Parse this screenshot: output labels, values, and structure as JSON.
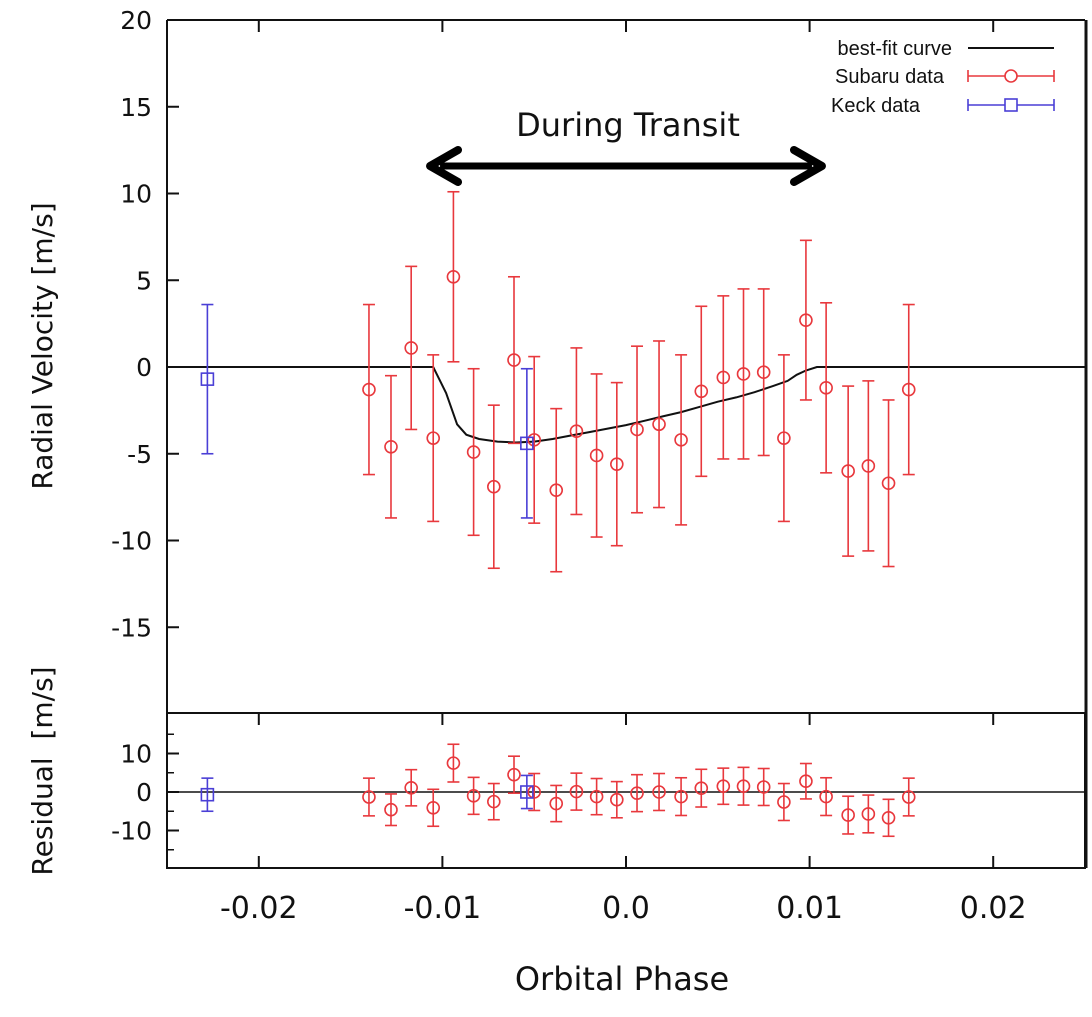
{
  "chart_data": [
    {
      "type": "scatter",
      "panel": "main",
      "ylabel": "Radial Velocity [m/s]",
      "xlim": [
        -0.025,
        0.025
      ],
      "ylim": [
        -20,
        20
      ],
      "x_ticks": [
        "-0.02",
        "-0.01",
        "0.0",
        "0.01",
        "0.02"
      ],
      "y_ticks": [
        "20",
        "15",
        "10",
        "5",
        "0",
        "-5",
        "-10",
        "-15"
      ],
      "xlabel": "Orbital Phase",
      "annotation": "During Transit",
      "transit_range": [
        -0.011,
        0.011
      ],
      "legend": {
        "placement": "top-right",
        "entries": [
          "best-fit curve",
          "Subaru data",
          "Keck data"
        ]
      },
      "series": [
        {
          "name": "best-fit curve",
          "kind": "line",
          "color": "#111111",
          "x": [
            -0.025,
            -0.0105,
            -0.0098,
            -0.0092,
            -0.0087,
            -0.008,
            -0.007,
            -0.006,
            -0.005,
            -0.004,
            -0.003,
            -0.002,
            -0.001,
            0.0,
            0.001,
            0.002,
            0.003,
            0.004,
            0.005,
            0.006,
            0.007,
            0.008,
            0.0088,
            0.0093,
            0.0098,
            0.0104,
            0.025
          ],
          "y": [
            0,
            0,
            -1.5,
            -3.3,
            -3.9,
            -4.15,
            -4.3,
            -4.35,
            -4.3,
            -4.15,
            -3.95,
            -3.75,
            -3.55,
            -3.35,
            -3.1,
            -2.85,
            -2.6,
            -2.3,
            -2.0,
            -1.75,
            -1.45,
            -1.1,
            -0.8,
            -0.45,
            -0.2,
            0,
            0
          ]
        },
        {
          "name": "Subaru data",
          "kind": "errorbar",
          "marker": "circle",
          "color": "#e8383d",
          "x": [
            -0.014,
            -0.0128,
            -0.0117,
            -0.0105,
            -0.0094,
            -0.0083,
            -0.0072,
            -0.0061,
            -0.005,
            -0.0038,
            -0.0027,
            -0.0016,
            -0.0005,
            0.0006,
            0.0018,
            0.003,
            0.0041,
            0.0053,
            0.0064,
            0.0075,
            0.0086,
            0.0098,
            0.0109,
            0.0121,
            0.0132,
            0.0143,
            0.0154
          ],
          "y": [
            -1.3,
            -4.6,
            1.1,
            -4.1,
            5.2,
            -4.9,
            -6.9,
            0.4,
            -4.2,
            -7.1,
            -3.7,
            -5.1,
            -5.6,
            -3.6,
            -3.3,
            -4.2,
            -1.4,
            -0.6,
            -0.4,
            -0.3,
            -4.1,
            2.7,
            -1.2,
            -6.0,
            -5.7,
            -6.7,
            -1.3
          ],
          "yerr": [
            4.9,
            4.1,
            4.7,
            4.8,
            4.9,
            4.8,
            4.7,
            4.8,
            4.8,
            4.7,
            4.8,
            4.7,
            4.7,
            4.8,
            4.8,
            4.9,
            4.9,
            4.7,
            4.9,
            4.8,
            4.8,
            4.6,
            4.9,
            4.9,
            4.9,
            4.8,
            4.9
          ],
          "residual": [
            -1.3,
            -4.6,
            1.1,
            -4.1,
            7.5,
            -1.0,
            -2.5,
            4.5,
            0.0,
            -3.0,
            0.1,
            -1.2,
            -2.0,
            -0.3,
            0.0,
            -1.2,
            1.0,
            1.5,
            1.5,
            1.3,
            -2.6,
            2.8,
            -1.2,
            -6.0,
            -5.7,
            -6.7,
            -1.3
          ],
          "residual_err": [
            4.9,
            4.1,
            4.7,
            4.8,
            4.9,
            4.8,
            4.7,
            4.8,
            4.8,
            4.7,
            4.8,
            4.7,
            4.7,
            4.8,
            4.8,
            4.9,
            4.9,
            4.7,
            4.9,
            4.8,
            4.8,
            4.6,
            4.9,
            4.9,
            4.9,
            4.8,
            4.9
          ]
        },
        {
          "name": "Keck data",
          "kind": "errorbar",
          "marker": "square",
          "color": "#4a3fd6",
          "x": [
            -0.0228,
            -0.0054
          ],
          "y": [
            -0.7,
            -4.4
          ],
          "yerr": [
            4.3,
            4.3
          ],
          "residual": [
            -0.7,
            0.0
          ],
          "residual_err": [
            4.3,
            4.3
          ]
        }
      ]
    },
    {
      "type": "scatter",
      "panel": "residual",
      "ylabel": "Residual  [m/s]",
      "xlim": [
        -0.025,
        0.025
      ],
      "ylim": [
        -20,
        20
      ],
      "y_ticks": [
        "10",
        "0",
        "-10"
      ]
    }
  ]
}
